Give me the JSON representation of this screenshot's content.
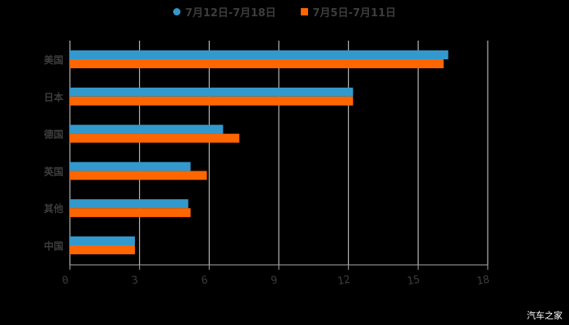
{
  "legend": [
    {
      "label": "7月12日-7月18日",
      "color": "#3399cc",
      "marker": "circle"
    },
    {
      "label": "7月5日-7月11日",
      "color": "#ff6600",
      "marker": "square"
    }
  ],
  "watermark": "汽车之家",
  "chart_data": {
    "type": "bar",
    "orientation": "horizontal",
    "title": "",
    "categories": [
      "美国",
      "日本",
      "德国",
      "英国",
      "其他",
      "中国"
    ],
    "series": [
      {
        "name": "7月12日-7月18日",
        "color": "#3399cc",
        "values": [
          16.3,
          12.2,
          6.6,
          5.2,
          5.1,
          2.8
        ]
      },
      {
        "name": "7月5日-7月11日",
        "color": "#ff6600",
        "values": [
          16.1,
          12.2,
          7.3,
          5.9,
          5.2,
          2.8
        ]
      }
    ],
    "xlabel": "",
    "ylabel": "",
    "xlim": [
      0,
      18
    ],
    "xticks": [
      0,
      3,
      6,
      9,
      12,
      15,
      18
    ],
    "grid": true,
    "legend_position": "top"
  }
}
